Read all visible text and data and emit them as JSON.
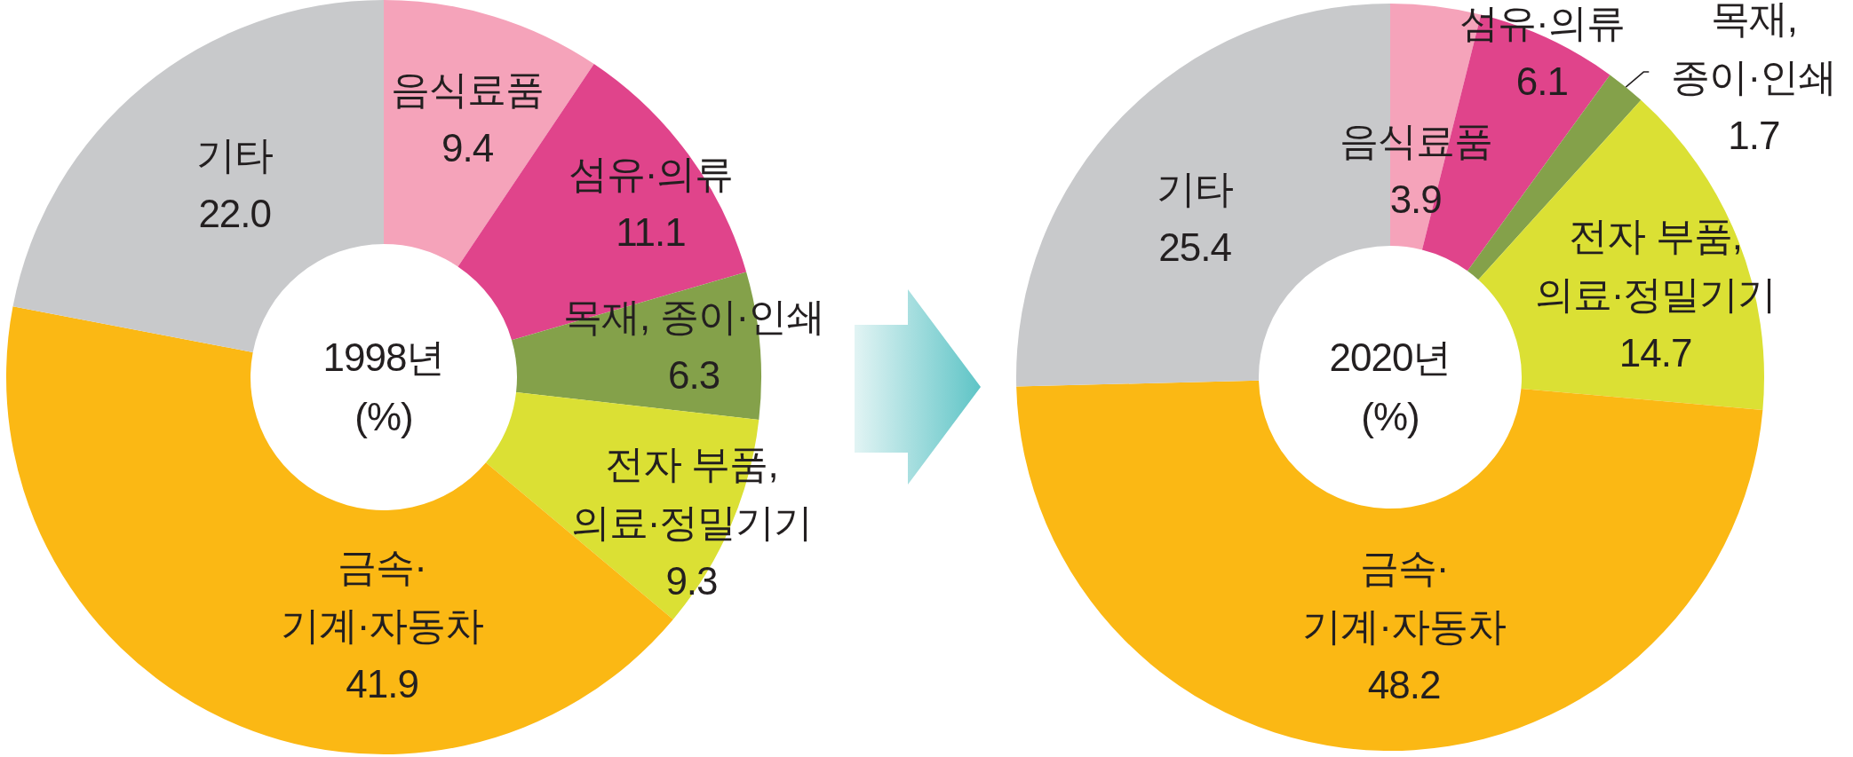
{
  "chart_data": [
    {
      "type": "donut",
      "title": "1998년",
      "subtitle": "(%)",
      "categories": [
        "음식료품",
        "섬유·의류",
        "목재, 종이·인쇄",
        "전자 부품,\n의료·정밀기기",
        "금속·\n기계·자동차",
        "기타"
      ],
      "values": [
        9.4,
        11.1,
        6.3,
        9.3,
        41.9,
        22.0
      ],
      "value_labels": [
        "9.4",
        "11.1",
        "6.3",
        "9.3",
        "41.9",
        "22.0"
      ],
      "colors": [
        "#f5a3ba",
        "#e0448b",
        "#84a14a",
        "#dbe034",
        "#fbb814",
        "#c8c9cb"
      ]
    },
    {
      "type": "donut",
      "title": "2020년",
      "subtitle": "(%)",
      "categories": [
        "음식료품",
        "섬유·의류",
        "목재,\n종이·인쇄",
        "전자 부품,\n의료·정밀기기",
        "금속·\n기계·자동차",
        "기타"
      ],
      "values": [
        3.9,
        6.1,
        1.7,
        14.7,
        48.2,
        25.4
      ],
      "value_labels": [
        "3.9",
        "6.1",
        "1.7",
        "14.7",
        "48.2",
        "25.4"
      ],
      "colors": [
        "#f5a3ba",
        "#e0448b",
        "#84a14a",
        "#dbe034",
        "#fbb814",
        "#c8c9cb"
      ]
    }
  ]
}
